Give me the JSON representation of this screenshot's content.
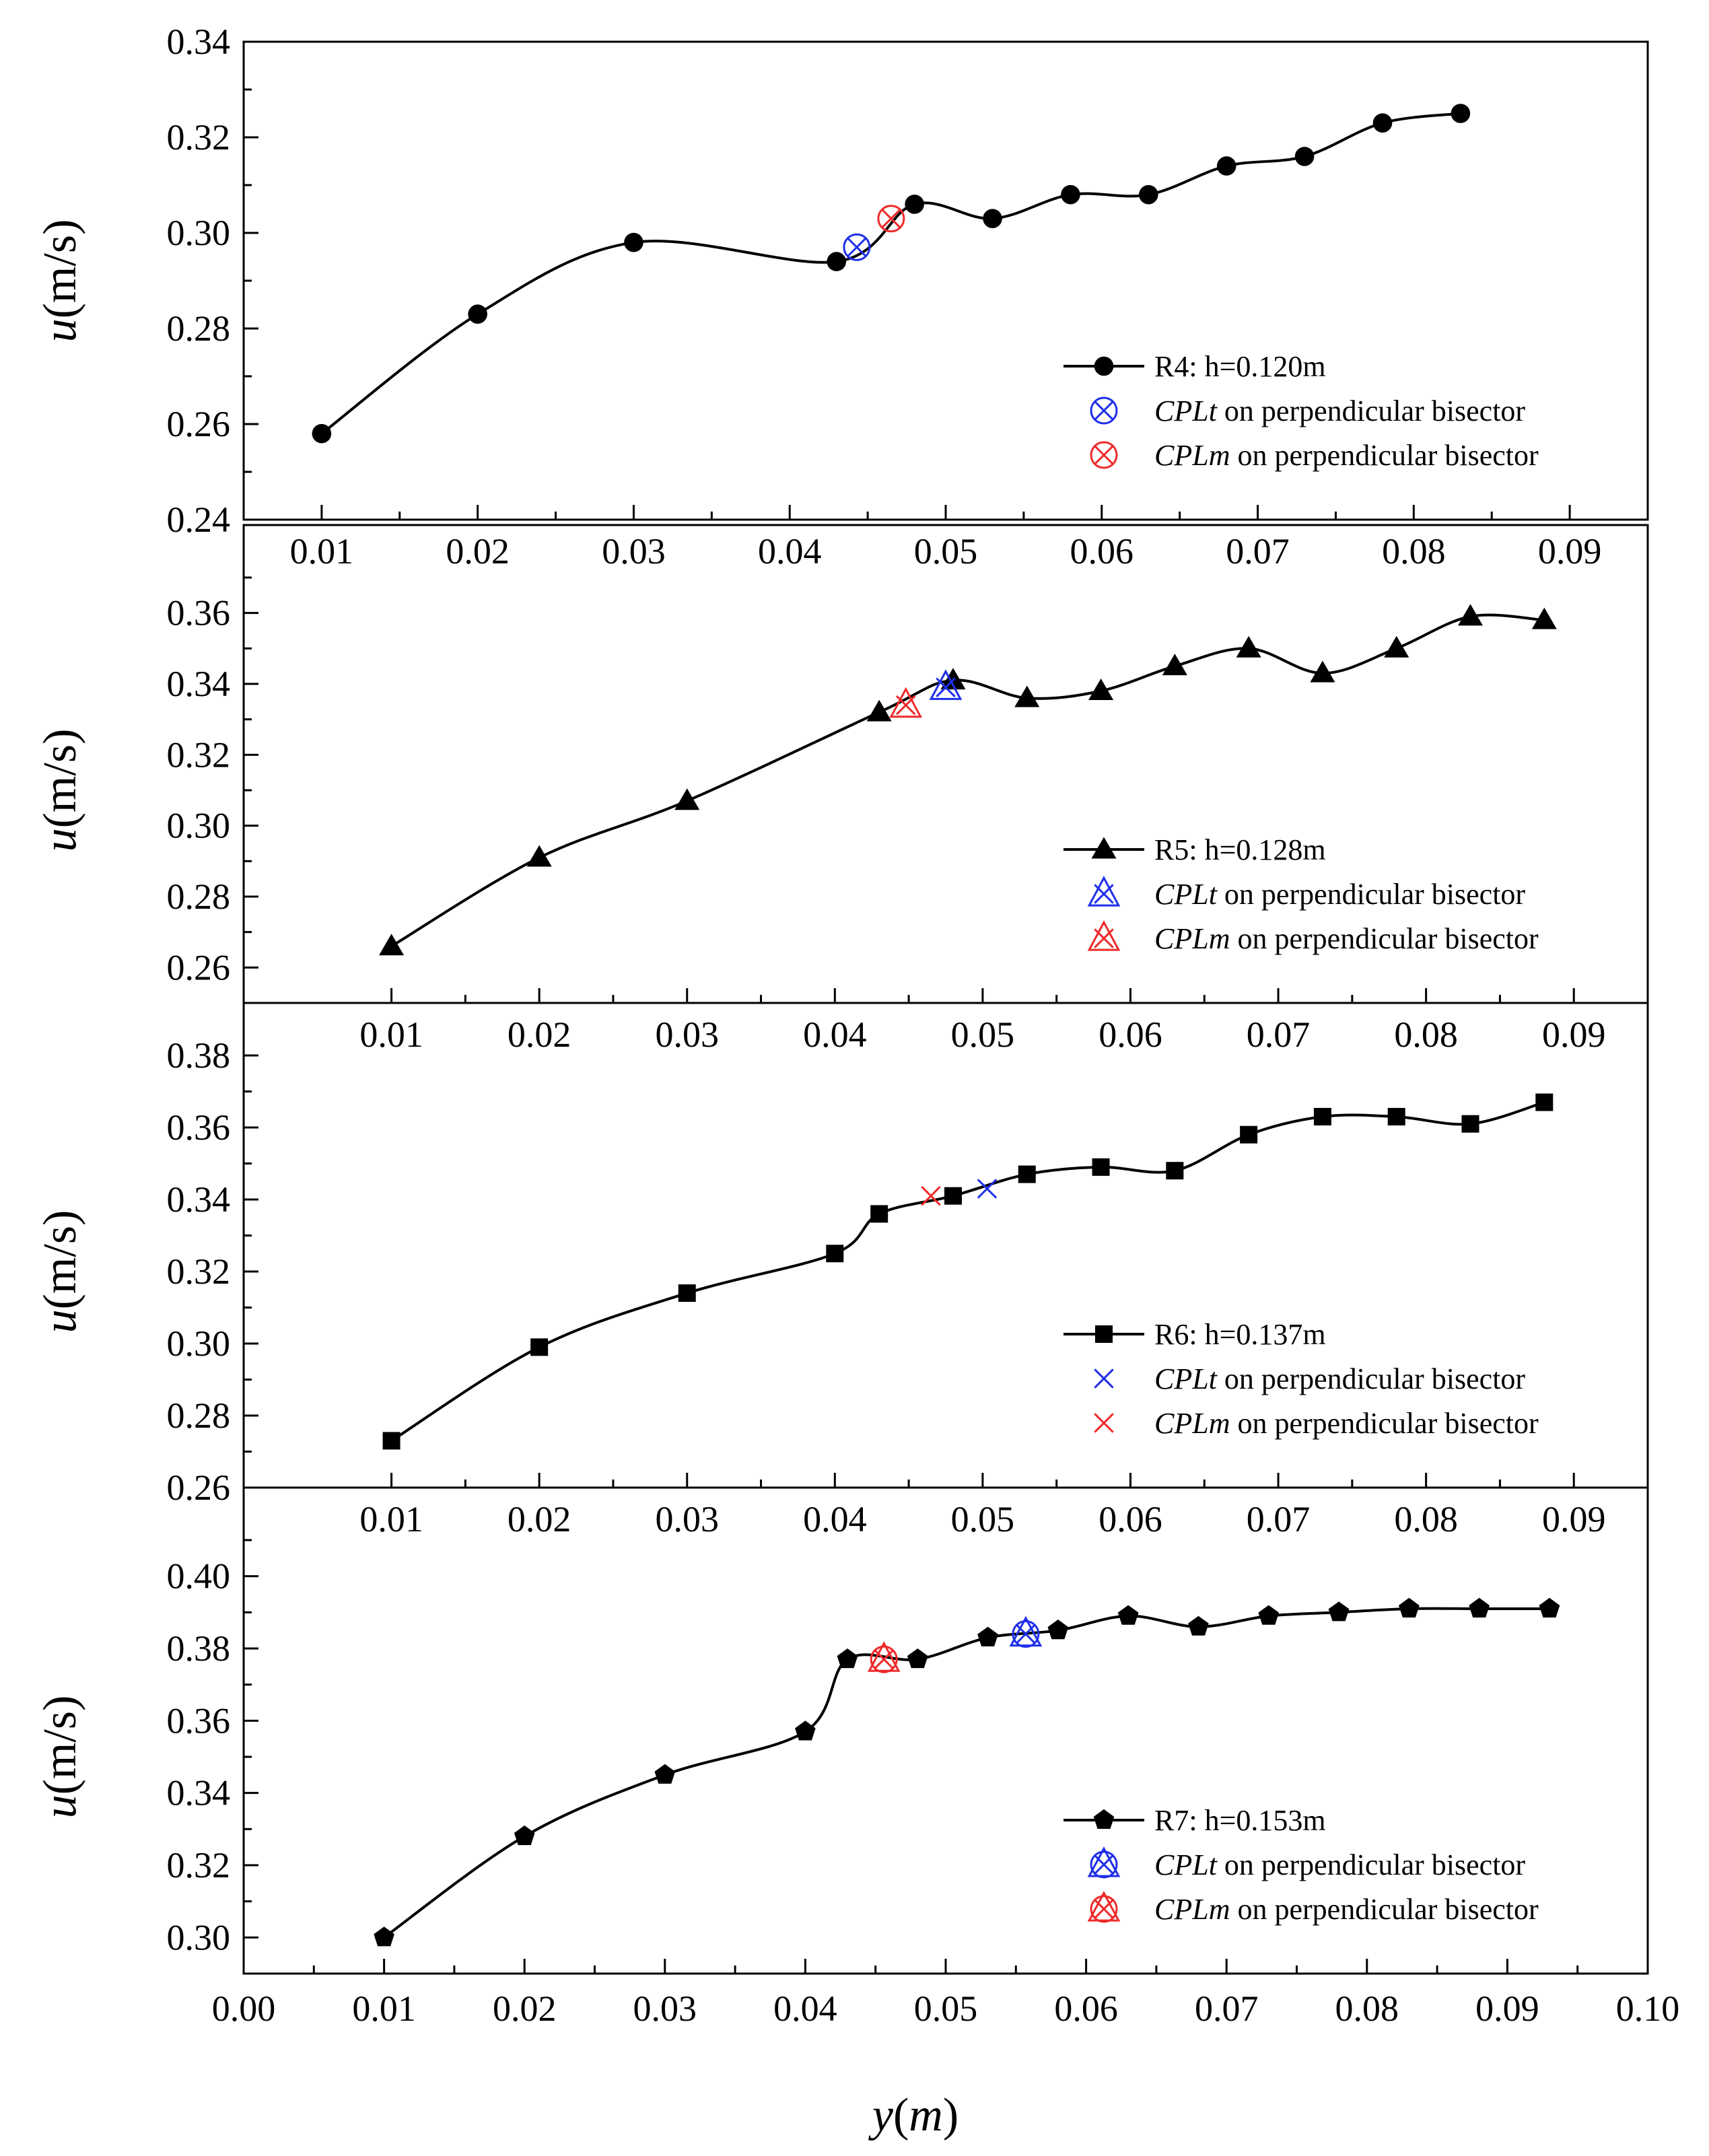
{
  "chart_data": [
    {
      "type": "line",
      "ylabel_var": "u",
      "ylabel_unit": "(m/s)",
      "xlim": [
        0.005,
        0.095
      ],
      "ylim": [
        0.24,
        0.34
      ],
      "yticks": [
        0.24,
        0.26,
        0.28,
        0.3,
        0.32,
        0.34
      ],
      "xticks": [
        0.01,
        0.02,
        0.03,
        0.04,
        0.05,
        0.06,
        0.07,
        0.08,
        0.09
      ],
      "tick_labels_y": [
        "0.24",
        "0.26",
        "0.28",
        "0.30",
        "0.32",
        "0.34"
      ],
      "tick_labels_x": [
        "0.01",
        "0.02",
        "0.03",
        "0.04",
        "0.05",
        "0.06",
        "0.07",
        "0.08",
        "0.09"
      ],
      "x_tick_side": "bottom",
      "marker": "circle",
      "cpl_marker": "circle-x",
      "series": [
        {
          "name": "R4: h=0.120m",
          "x": [
            0.01,
            0.02,
            0.03,
            0.043,
            0.048,
            0.053,
            0.058,
            0.063,
            0.068,
            0.073,
            0.078,
            0.083
          ],
          "y": [
            0.258,
            0.283,
            0.298,
            0.294,
            0.306,
            0.303,
            0.308,
            0.308,
            0.314,
            0.316,
            0.323,
            0.325
          ]
        }
      ],
      "cpl_t": {
        "label_italic": "CPLt",
        "label_rest": " on perpendicular bisector",
        "x": 0.0443,
        "y": 0.297,
        "color": "#1f2fe8"
      },
      "cpl_m": {
        "label_italic": "CPLm",
        "label_rest": " on perpendicular bisector",
        "x": 0.0465,
        "y": 0.303,
        "color": "#ee2a2a"
      },
      "legend_position": "bottom-right"
    },
    {
      "type": "line",
      "ylabel_var": "u",
      "ylabel_unit": "(m/s)",
      "xlim": [
        0.0,
        0.095
      ],
      "ylim": [
        0.25,
        0.37
      ],
      "yticks": [
        0.26,
        0.28,
        0.3,
        0.32,
        0.34,
        0.36
      ],
      "xticks": [
        0.01,
        0.02,
        0.03,
        0.04,
        0.05,
        0.06,
        0.07,
        0.08,
        0.09
      ],
      "tick_labels_y": [
        "0.26",
        "0.28",
        "0.30",
        "0.32",
        "0.34",
        "0.36"
      ],
      "tick_labels_x": [
        "0.01",
        "0.02",
        "0.03",
        "0.04",
        "0.05",
        "0.06",
        "0.07",
        "0.08",
        "0.09"
      ],
      "x_tick_side": "bottom",
      "marker": "triangle",
      "cpl_marker": "triangle-x",
      "series": [
        {
          "name": "R5: h=0.128m",
          "x": [
            0.01,
            0.02,
            0.03,
            0.043,
            0.048,
            0.053,
            0.058,
            0.063,
            0.068,
            0.073,
            0.078,
            0.083,
            0.088
          ],
          "y": [
            0.266,
            0.291,
            0.307,
            0.332,
            0.341,
            0.336,
            0.338,
            0.345,
            0.35,
            0.343,
            0.35,
            0.359,
            0.358
          ]
        }
      ],
      "cpl_t": {
        "label_italic": "CPLt",
        "label_rest": " on perpendicular bisector",
        "x": 0.0475,
        "y": 0.339,
        "color": "#1f2fe8"
      },
      "cpl_m": {
        "label_italic": "CPLm",
        "label_rest": " on perpendicular bisector",
        "x": 0.0448,
        "y": 0.334,
        "color": "#ee2a2a"
      },
      "legend_position": "bottom-right"
    },
    {
      "type": "line",
      "ylabel_var": "u",
      "ylabel_unit": "(m/s)",
      "xlim": [
        0.0,
        0.095
      ],
      "ylim": [
        0.26,
        0.38
      ],
      "yticks": [
        0.26,
        0.28,
        0.3,
        0.32,
        0.34,
        0.36,
        0.38
      ],
      "xticks": [
        0.01,
        0.02,
        0.03,
        0.04,
        0.05,
        0.06,
        0.07,
        0.08,
        0.09
      ],
      "tick_labels_y": [
        "0.26",
        "0.28",
        "0.30",
        "0.32",
        "0.34",
        "0.36",
        "0.38"
      ],
      "tick_labels_x": [
        "0.01",
        "0.02",
        "0.03",
        "0.04",
        "0.05",
        "0.06",
        "0.07",
        "0.08",
        "0.09"
      ],
      "x_tick_side": "bottom",
      "marker": "square",
      "cpl_marker": "x-cross",
      "series": [
        {
          "name": "R6: h=0.137m",
          "x": [
            0.01,
            0.02,
            0.03,
            0.04,
            0.043,
            0.048,
            0.053,
            0.058,
            0.063,
            0.068,
            0.073,
            0.078,
            0.083,
            0.088
          ],
          "y": [
            0.273,
            0.299,
            0.314,
            0.325,
            0.336,
            0.341,
            0.347,
            0.349,
            0.348,
            0.358,
            0.363,
            0.363,
            0.361,
            0.367
          ]
        }
      ],
      "cpl_t": {
        "label_italic": "CPLt",
        "label_rest": " on perpendicular bisector",
        "x": 0.0503,
        "y": 0.343,
        "color": "#1f2fe8"
      },
      "cpl_m": {
        "label_italic": "CPLm",
        "label_rest": " on perpendicular bisector",
        "x": 0.0465,
        "y": 0.341,
        "color": "#ee2a2a"
      },
      "legend_position": "bottom-right"
    },
    {
      "type": "line",
      "ylabel_var": "u",
      "ylabel_unit": "(m/s)",
      "xlabel_var": "y",
      "xlabel_unit": "(",
      "xlabel_unit_var": "m",
      "xlabel_unit_close": ")",
      "xlim": [
        0.0,
        0.1
      ],
      "ylim": [
        0.29,
        0.41
      ],
      "yticks": [
        0.3,
        0.32,
        0.34,
        0.36,
        0.38,
        0.4
      ],
      "xticks": [
        0.01,
        0.02,
        0.03,
        0.04,
        0.05,
        0.06,
        0.07,
        0.08,
        0.09
      ],
      "xticks_bottom": [
        0.0,
        0.01,
        0.02,
        0.03,
        0.04,
        0.05,
        0.06,
        0.07,
        0.08,
        0.09,
        0.1
      ],
      "tick_labels_y": [
        "0.30",
        "0.32",
        "0.34",
        "0.36",
        "0.38",
        "0.40"
      ],
      "tick_labels_x": [
        "0.00",
        "0.01",
        "0.02",
        "0.03",
        "0.04",
        "0.05",
        "0.06",
        "0.07",
        "0.08",
        "0.09",
        "0.10"
      ],
      "x_tick_side": "bottom",
      "marker": "pentagon",
      "cpl_marker": "circle-x-triangle",
      "series": [
        {
          "name": "R7: h=0.153m",
          "x": [
            0.01,
            0.02,
            0.03,
            0.04,
            0.043,
            0.048,
            0.053,
            0.058,
            0.063,
            0.068,
            0.073,
            0.078,
            0.083,
            0.088,
            0.093
          ],
          "y": [
            0.3,
            0.328,
            0.345,
            0.357,
            0.377,
            0.377,
            0.383,
            0.385,
            0.389,
            0.386,
            0.389,
            0.39,
            0.391,
            0.391,
            0.391
          ]
        }
      ],
      "cpl_t": {
        "label_italic": "CPLt",
        "label_rest": " on perpendicular bisector",
        "x": 0.0557,
        "y": 0.384,
        "color": "#1f2fe8"
      },
      "cpl_m": {
        "label_italic": "CPLm",
        "label_rest": " on perpendicular bisector",
        "x": 0.0456,
        "y": 0.377,
        "color": "#ee2a2a"
      },
      "legend_position": "bottom-right"
    }
  ]
}
